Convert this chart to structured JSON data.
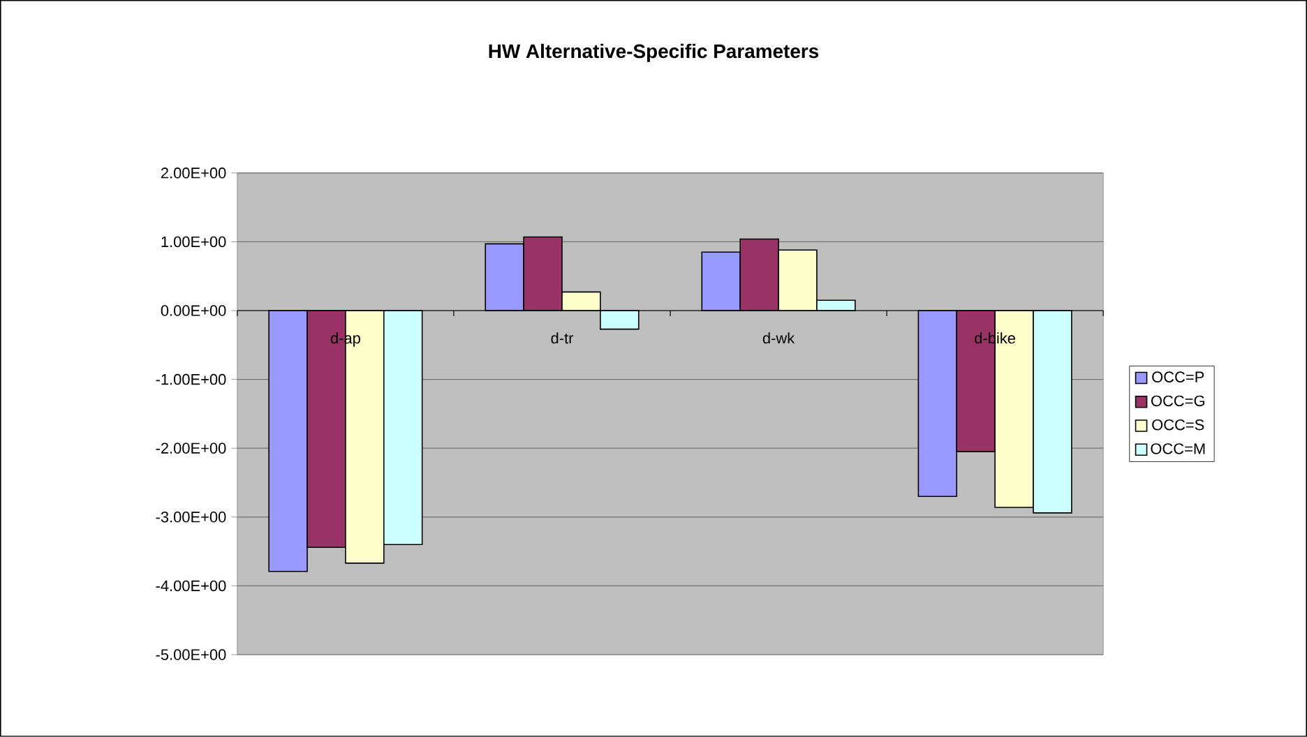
{
  "chart_data": {
    "type": "bar",
    "title": "HW Alternative-Specific Parameters",
    "categories": [
      "d-ap",
      "d-tr",
      "d-wk",
      "d-bike"
    ],
    "series": [
      {
        "name": "OCC=P",
        "color": "#9999ff",
        "values": [
          -3.79,
          0.97,
          0.85,
          -2.7
        ]
      },
      {
        "name": "OCC=G",
        "color": "#993366",
        "values": [
          -3.44,
          1.07,
          1.04,
          -2.05
        ]
      },
      {
        "name": "OCC=S",
        "color": "#ffffcc",
        "values": [
          -3.67,
          0.27,
          0.88,
          -2.86
        ]
      },
      {
        "name": "OCC=M",
        "color": "#ccffff",
        "values": [
          -3.4,
          -0.27,
          0.15,
          -2.94
        ]
      }
    ],
    "ylim": [
      -5,
      2
    ],
    "yticks": [
      {
        "value": -5,
        "label": "-5.00E+00"
      },
      {
        "value": -4,
        "label": "-4.00E+00"
      },
      {
        "value": -3,
        "label": "-3.00E+00"
      },
      {
        "value": -2,
        "label": "-2.00E+00"
      },
      {
        "value": -1,
        "label": "-1.00E+00"
      },
      {
        "value": 0,
        "label": "0.00E+00"
      },
      {
        "value": 1,
        "label": "1.00E+00"
      },
      {
        "value": 2,
        "label": "2.00E+00"
      }
    ],
    "grid": "y",
    "legend": "right"
  }
}
